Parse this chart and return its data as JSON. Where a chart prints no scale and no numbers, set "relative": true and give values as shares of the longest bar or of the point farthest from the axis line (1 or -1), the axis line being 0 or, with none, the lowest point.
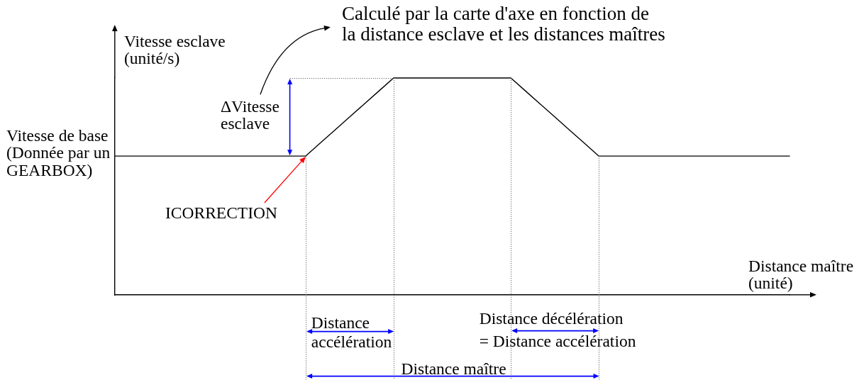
{
  "chart_data": {
    "type": "line",
    "relative": true,
    "color": "#000000",
    "grid": "x",
    "xlabel": "Distance maître\n(unité)",
    "ylabel": "Vitesse esclave\n(unité/s)",
    "categories": [
      null,
      null,
      null,
      null,
      null,
      null,
      null,
      null,
      null,
      null,
      null,
      null,
      null,
      null,
      null,
      null,
      null,
      null,
      null,
      null,
      null,
      null,
      null,
      null,
      null,
      null,
      null,
      null,
      null,
      null,
      null,
      null,
      null,
      null,
      null,
      null,
      null,
      null,
      null,
      null,
      null,
      null,
      null,
      null,
      null,
      null,
      null
    ],
    "values": [
      0.64,
      0.64,
      0.64,
      0.64,
      0.64,
      0.64,
      0.64,
      0.64,
      0.64,
      0.64,
      0.64,
      0.64,
      0.64,
      0.64,
      0.7,
      0.76,
      0.82,
      0.88,
      0.94,
      1,
      1,
      1,
      1,
      1,
      1,
      1,
      1,
      1,
      0.94,
      0.88,
      0.82,
      0.76,
      0.7,
      0.64,
      0.64,
      0.64,
      0.64,
      0.64,
      0.64,
      0.64,
      0.64,
      0.64,
      0.64,
      0.64,
      0.64,
      0.64,
      0.64
    ],
    "annotations": [
      "Calculé par la carte d'axe en fonction de\nla distance esclave et les distances maîtres",
      "ΔVitesse\nesclave",
      "Vitesse de base\n(Donnée par un\nGEARBOX)",
      "ICORRECTION",
      "Distance\naccélération",
      "Distance décélération\n= Distance accélération",
      "Distance maître"
    ]
  }
}
